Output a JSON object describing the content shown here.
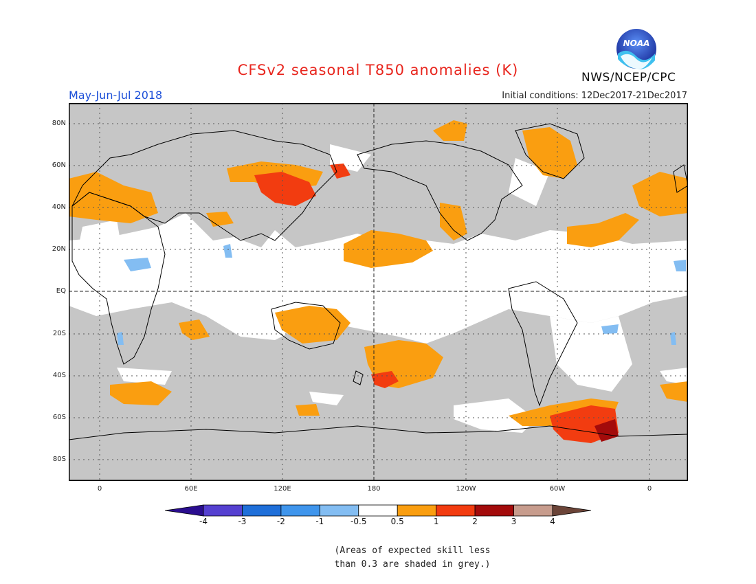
{
  "title": "CFSv2 seasonal T850 anomalies (K)",
  "period": "May-Jun-Jul 2018",
  "agency": "NWS/NCEP/CPC",
  "logo_text": "NOAA",
  "initial_conditions": "Initial conditions: 12Dec2017-21Dec2017",
  "lat_labels": [
    "80N",
    "60N",
    "40N",
    "20N",
    "EQ",
    "20S",
    "40S",
    "60S",
    "80S"
  ],
  "lon_labels": [
    "0",
    "60E",
    "120E",
    "180",
    "120W",
    "60W",
    "0"
  ],
  "colorbar": {
    "labels": [
      "-4",
      "-3",
      "-2",
      "-1",
      "-0.5",
      "0.5",
      "1",
      "2",
      "3",
      "4"
    ],
    "colors": [
      "#2a0d8f",
      "#5540d0",
      "#1f6fd9",
      "#3f95ec",
      "#83bdf2",
      "#ffffff",
      "#fa9e10",
      "#f23c10",
      "#a30b0b",
      "#c79c8d",
      "#6b4438"
    ]
  },
  "colors": {
    "land_outline": "#000000",
    "skill_grey": "#c6c6c6",
    "no_anomaly": "#ffffff",
    "warm_1": "#fa9e10",
    "warm_2": "#f23c10",
    "warm_3": "#a30b0b",
    "cool_1": "#83bdf2",
    "title": "#e8261e",
    "period": "#1c4fd8"
  },
  "note_lines": [
    "(Areas of expected skill less",
    "than 0.3 are shaded in grey.)"
  ]
}
